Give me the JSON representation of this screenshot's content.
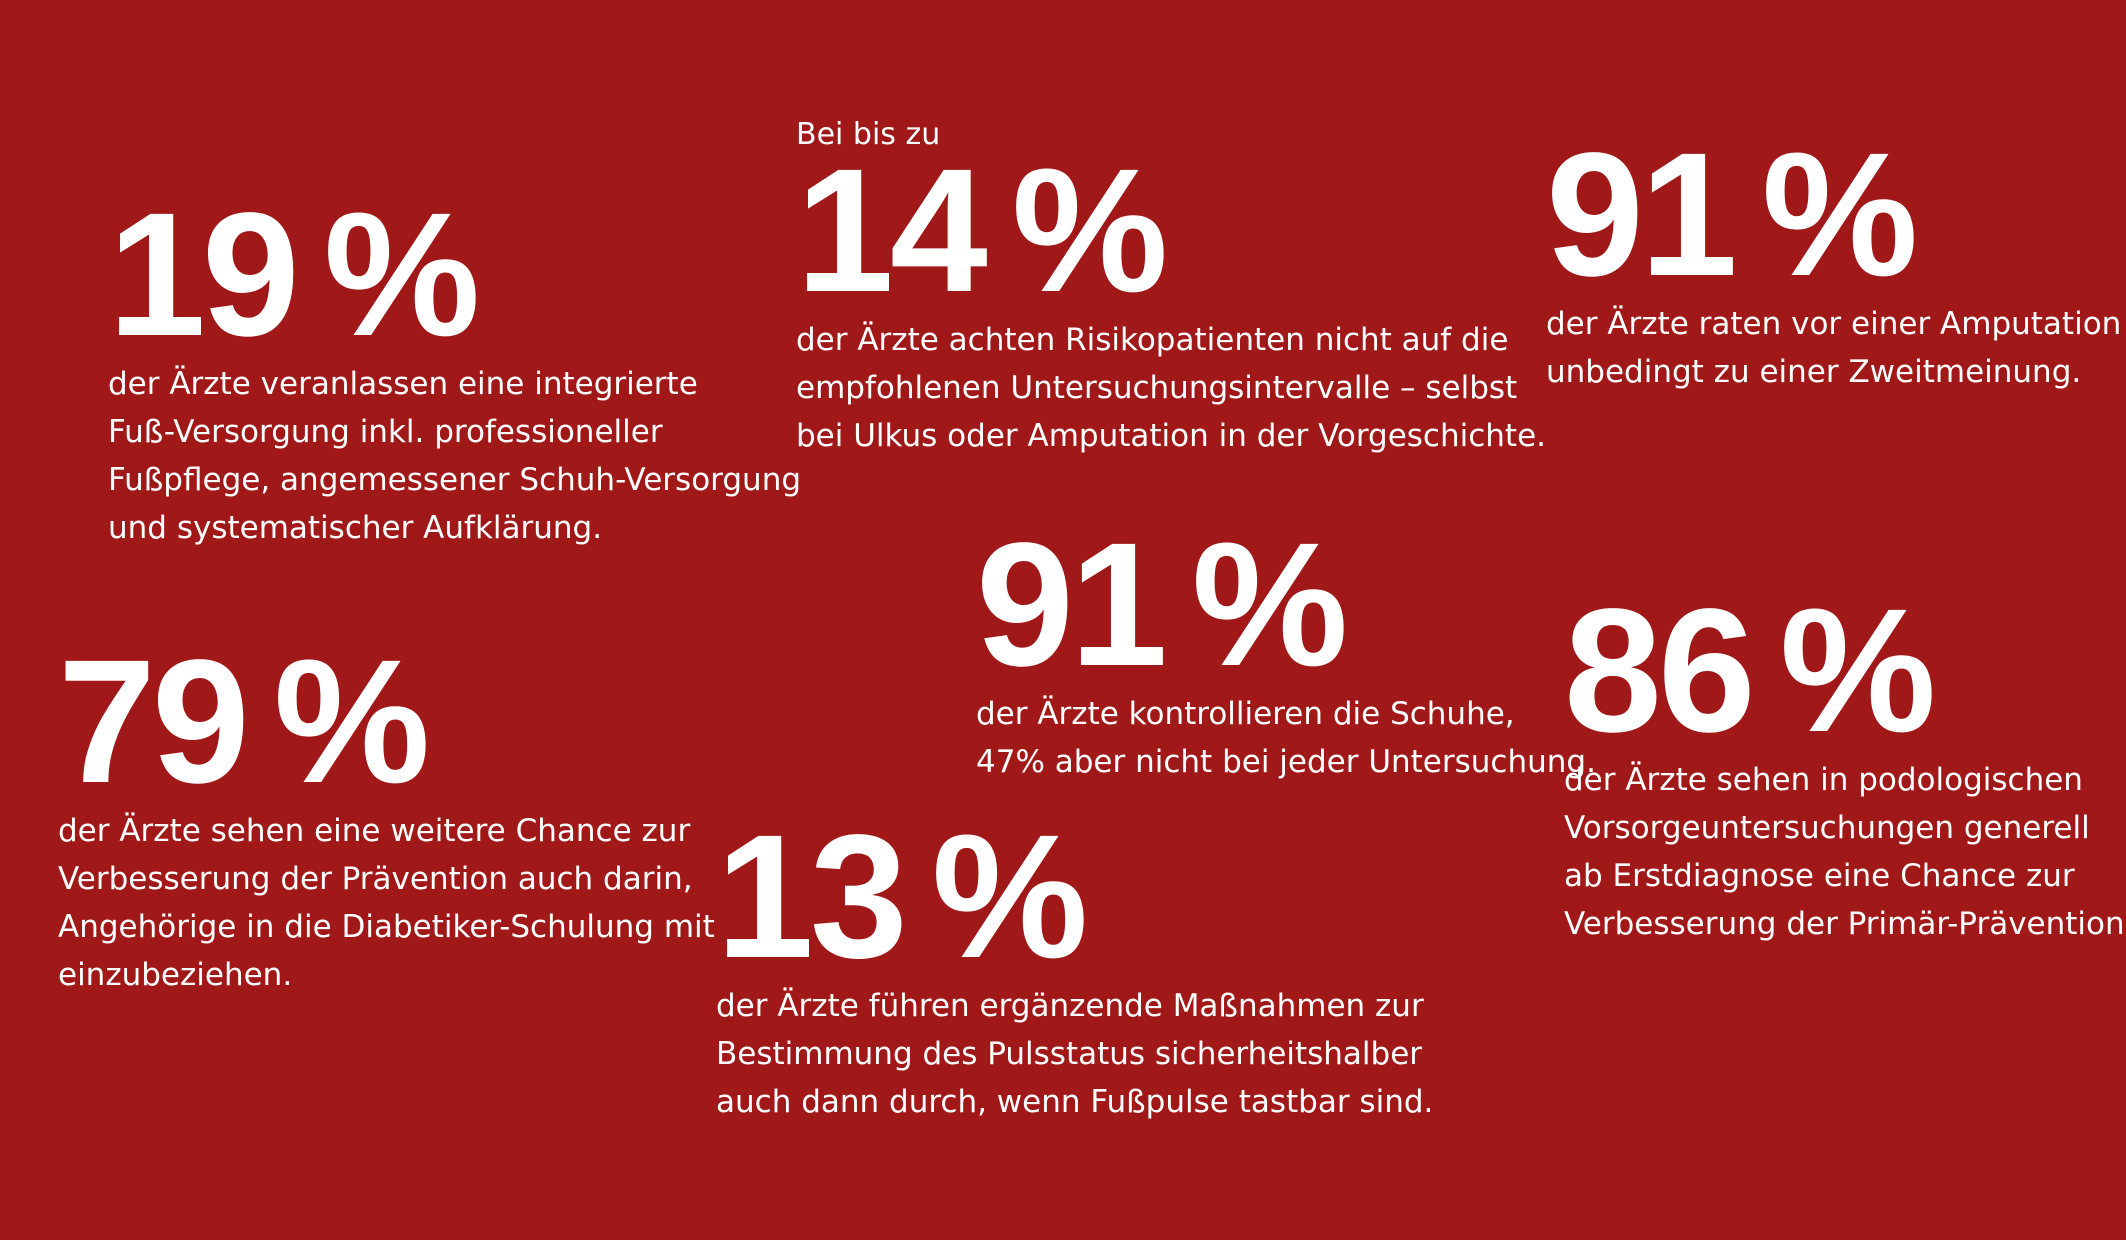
{
  "background_color": "#a01818",
  "text_color": "#ffffff",
  "stats": [
    {
      "number": "19",
      "percent": "%",
      "lines": [
        "der Ärzte veranlassen eine integrierte",
        "Fuß-Versorgung inkl. professioneller",
        "Fußpflege, angemessener Schuh-Versorgung",
        "und systematischer Aufklärung."
      ]
    },
    {
      "prefix": "Bei bis zu",
      "number": "14",
      "percent": "%",
      "lines": [
        "der Ärzte achten Risikopatienten nicht auf die",
        "empfohlenen Untersuchungsintervalle – selbst",
        "bei Ulkus oder Amputation in der Vorgeschichte."
      ]
    },
    {
      "number": "91",
      "percent": "%",
      "lines": [
        "der Ärzte raten vor einer Amputation",
        "unbedingt zu einer Zweitmeinung."
      ]
    },
    {
      "number": "91",
      "percent": "%",
      "lines": [
        "der Ärzte kontrollieren die Schuhe,",
        "47% aber nicht bei jeder Untersuchung."
      ]
    },
    {
      "number": "86",
      "percent": "%",
      "lines": [
        "der Ärzte sehen in podologischen",
        "Vorsorgeuntersuchungen generell",
        "ab Erstdiagnose eine Chance zur",
        "Verbesserung der Primär-Prävention."
      ]
    },
    {
      "number": "79",
      "percent": "%",
      "lines": [
        "der Ärzte sehen eine weitere Chance zur",
        "Verbesserung der Prävention auch darin,",
        "Angehörige in die Diabetiker-Schulung mit",
        "einzubeziehen."
      ]
    },
    {
      "number": "13",
      "percent": "%",
      "lines": [
        "der Ärzte führen ergänzende Maßnahmen zur",
        "Bestimmung des Pulsstatus sicherheitshalber",
        "auch dann durch, wenn Fußpulse tastbar sind."
      ]
    }
  ]
}
